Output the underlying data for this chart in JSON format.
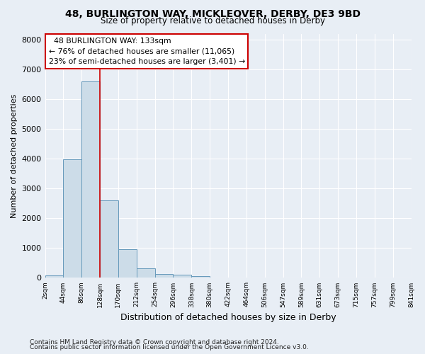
{
  "title1": "48, BURLINGTON WAY, MICKLEOVER, DERBY, DE3 9BD",
  "title2": "Size of property relative to detached houses in Derby",
  "xlabel": "Distribution of detached houses by size in Derby",
  "ylabel": "Number of detached properties",
  "footnote1": "Contains HM Land Registry data © Crown copyright and database right 2024.",
  "footnote2": "Contains public sector information licensed under the Open Government Licence v3.0.",
  "annotation_line1": "  48 BURLINGTON WAY: 133sqm",
  "annotation_line2": "← 76% of detached houses are smaller (11,065)",
  "annotation_line3": "23% of semi-detached houses are larger (3,401) →",
  "bar_values": [
    75,
    3975,
    6600,
    2600,
    950,
    310,
    130,
    110,
    65,
    0,
    0,
    0,
    0,
    0,
    0,
    0,
    0,
    0,
    0,
    0
  ],
  "tick_labels": [
    "2sqm",
    "44sqm",
    "86sqm",
    "128sqm",
    "170sqm",
    "212sqm",
    "254sqm",
    "296sqm",
    "338sqm",
    "380sqm",
    "422sqm",
    "464sqm",
    "506sqm",
    "547sqm",
    "589sqm",
    "631sqm",
    "673sqm",
    "715sqm",
    "757sqm",
    "799sqm",
    "841sqm"
  ],
  "bar_color": "#ccdce8",
  "bar_edge_color": "#6699bb",
  "bg_color": "#e8eef5",
  "grid_color": "#ffffff",
  "annotation_box_color": "#cc0000",
  "vline_color": "#cc0000",
  "vline_x": 3,
  "ylim": [
    0,
    8200
  ],
  "yticks": [
    0,
    1000,
    2000,
    3000,
    4000,
    5000,
    6000,
    7000,
    8000
  ]
}
